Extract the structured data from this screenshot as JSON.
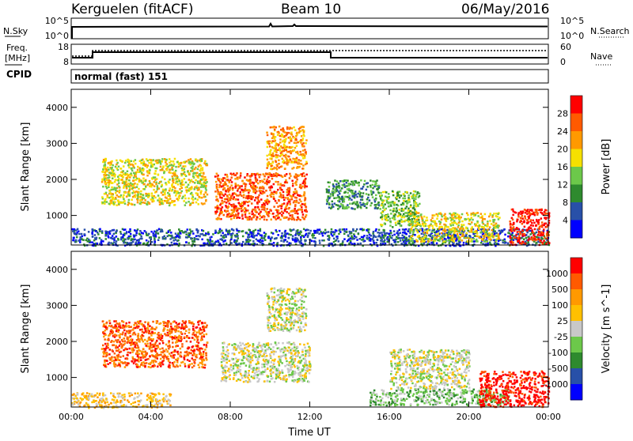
{
  "header": {
    "site": "Kerguelen (fitACF)",
    "beam": "Beam 10",
    "date": "06/May/2016"
  },
  "nsky_panel": {
    "left_label": "N.Sky",
    "left_ticks": [
      "10^5",
      "10^0"
    ],
    "right_label": "N.Search",
    "right_ticks": [
      "10^5",
      "10^0"
    ]
  },
  "freq_panel": {
    "left_label_line1": "Freq.",
    "left_label_line2": "[MHz]",
    "left_ticks": [
      "18",
      "8"
    ],
    "right_label": "Nave",
    "right_ticks": [
      "60",
      "0"
    ],
    "cpid_label": "CPID",
    "mode_text": "normal (fast) 151"
  },
  "chart_data": [
    {
      "type": "heatmap",
      "name": "power",
      "ylabel": "Slant Range [km]",
      "yticks": [
        "4000",
        "3000",
        "2000",
        "1000"
      ],
      "xticks": [
        "00:00",
        "04:00",
        "08:00",
        "12:00",
        "16:00",
        "20:00",
        "00:00"
      ],
      "ylim": [
        180,
        4500
      ],
      "colorbar_label": "Power [dB]",
      "colorbar_ticks": [
        "28",
        "24",
        "20",
        "16",
        "12",
        "8",
        "4"
      ],
      "colorbar_colors": [
        "#0000ff",
        "#2850a8",
        "#2e8a2e",
        "#6cc84a",
        "#f5e000",
        "#ff9900",
        "#ff5a00",
        "#ff0000"
      ],
      "regions": [
        {
          "t0": 0.0,
          "t1": 24.0,
          "r0": 180,
          "r1": 650,
          "level": 1
        },
        {
          "t0": 1.5,
          "t1": 6.8,
          "r0": 1300,
          "r1": 2600,
          "level": 4
        },
        {
          "t0": 7.2,
          "t1": 11.8,
          "r0": 900,
          "r1": 2200,
          "level": 6
        },
        {
          "t0": 9.8,
          "t1": 11.8,
          "r0": 2300,
          "r1": 3500,
          "level": 5
        },
        {
          "t0": 12.8,
          "t1": 15.5,
          "r0": 1200,
          "r1": 2000,
          "level": 2
        },
        {
          "t0": 15.5,
          "t1": 17.5,
          "r0": 700,
          "r1": 1700,
          "level": 3
        },
        {
          "t0": 17.0,
          "t1": 21.5,
          "r0": 300,
          "r1": 1100,
          "level": 4
        },
        {
          "t0": 22.0,
          "t1": 24.0,
          "r0": 200,
          "r1": 1200,
          "level": 7
        }
      ]
    },
    {
      "type": "heatmap",
      "name": "velocity",
      "ylabel": "Slant Range [km]",
      "yticks": [
        "4000",
        "3000",
        "2000",
        "1000"
      ],
      "xticks": [
        "00:00",
        "04:00",
        "08:00",
        "12:00",
        "16:00",
        "20:00",
        "00:00"
      ],
      "xlabel": "Time UT",
      "ylim": [
        180,
        4500
      ],
      "colorbar_label": "Velocity [m s^-1]",
      "colorbar_ticks": [
        "1000",
        "500",
        "100",
        "25",
        "-25",
        "-100",
        "-500",
        "-1000"
      ],
      "colorbar_colors": [
        "#0000ff",
        "#2850a8",
        "#2e8a2e",
        "#6cc84a",
        "#c8c8c8",
        "#ffc000",
        "#ff9900",
        "#ff5a00",
        "#ff0000"
      ],
      "regions": [
        {
          "t0": 0.0,
          "t1": 5.0,
          "r0": 180,
          "r1": 600,
          "level": 5
        },
        {
          "t0": 1.5,
          "t1": 6.8,
          "r0": 1300,
          "r1": 2600,
          "level": 7
        },
        {
          "t0": 7.5,
          "t1": 12.0,
          "r0": 900,
          "r1": 2000,
          "level": 4
        },
        {
          "t0": 9.8,
          "t1": 11.8,
          "r0": 2300,
          "r1": 3500,
          "level": 4
        },
        {
          "t0": 15.0,
          "t1": 22.0,
          "r0": 250,
          "r1": 700,
          "level": 3
        },
        {
          "t0": 16.0,
          "t1": 20.0,
          "r0": 700,
          "r1": 1800,
          "level": 4
        },
        {
          "t0": 20.5,
          "t1": 24.0,
          "r0": 200,
          "r1": 1200,
          "level": 8
        }
      ]
    }
  ]
}
